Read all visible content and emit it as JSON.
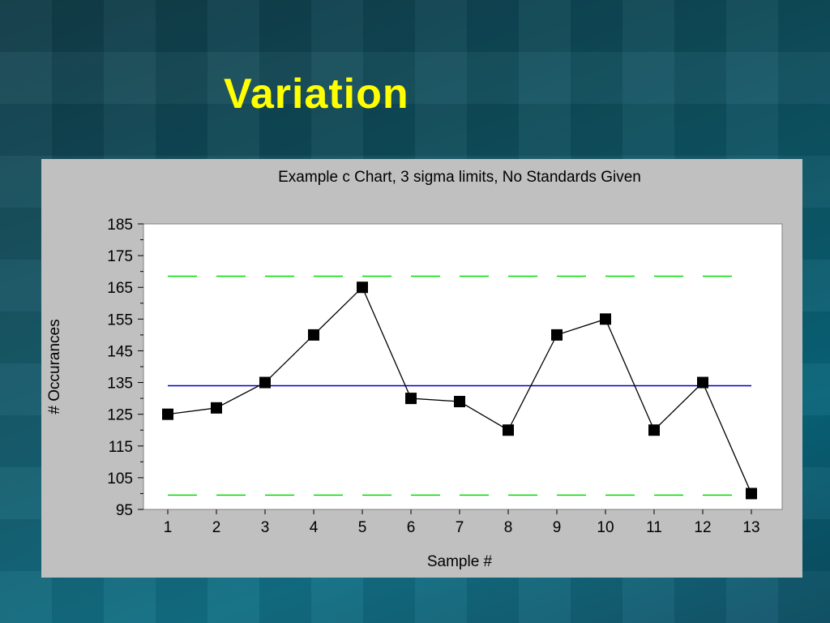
{
  "slide": {
    "title": "Variation"
  },
  "chart_data": {
    "type": "line",
    "title": "Example c Chart, 3 sigma limits, No Standards Given",
    "xlabel": "Sample #",
    "ylabel": "# Occurances",
    "x": [
      1,
      2,
      3,
      4,
      5,
      6,
      7,
      8,
      9,
      10,
      11,
      12,
      13
    ],
    "series": [
      {
        "values": [
          125,
          127,
          135,
          150,
          165,
          130,
          129,
          120,
          150,
          155,
          120,
          135,
          100
        ]
      }
    ],
    "center_line": 134,
    "ucl": 168.5,
    "lcl": 99.5,
    "ylim": [
      95,
      185
    ],
    "yticks": [
      95,
      105,
      115,
      125,
      135,
      145,
      155,
      165,
      175,
      185
    ],
    "grid": false,
    "legend": "none",
    "colors": {
      "series": "#000000",
      "center_line": "#0000c0",
      "limits": "#00dd00",
      "plot_bg": "#ffffff",
      "panel_bg": "#c0c0c0"
    }
  }
}
